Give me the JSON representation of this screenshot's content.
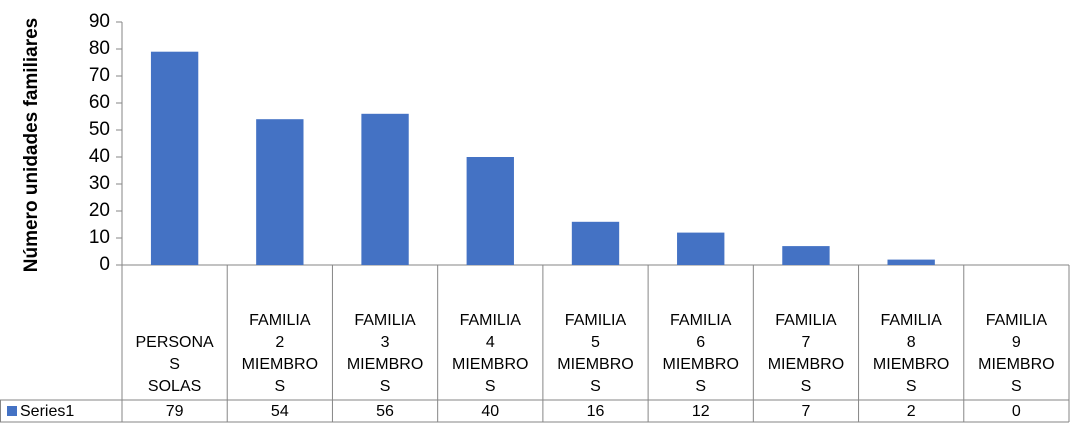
{
  "chart_data": {
    "type": "bar",
    "y_label": "Número unidades familiares",
    "categories": [
      "PERSONAS SOLAS",
      "FAMILIA 2 MIEMBROS",
      "FAMILIA 3 MIEMBROS",
      "FAMILIA 4 MIEMBROS",
      "FAMILIA 5 MIEMBROS",
      "FAMILIA 6 MIEMBROS",
      "FAMILIA 7 MIEMBROS",
      "FAMILIA 8 MIEMBROS",
      "FAMILIA 9 MIEMBROS"
    ],
    "series": [
      {
        "name": "Series1",
        "color": "#4472c4",
        "values": [
          79,
          54,
          56,
          40,
          16,
          12,
          7,
          2,
          0
        ]
      }
    ],
    "ylim": [
      0,
      90
    ],
    "yticks": [
      0,
      10,
      20,
      30,
      40,
      50,
      60,
      70,
      80,
      90
    ],
    "grid": false
  }
}
